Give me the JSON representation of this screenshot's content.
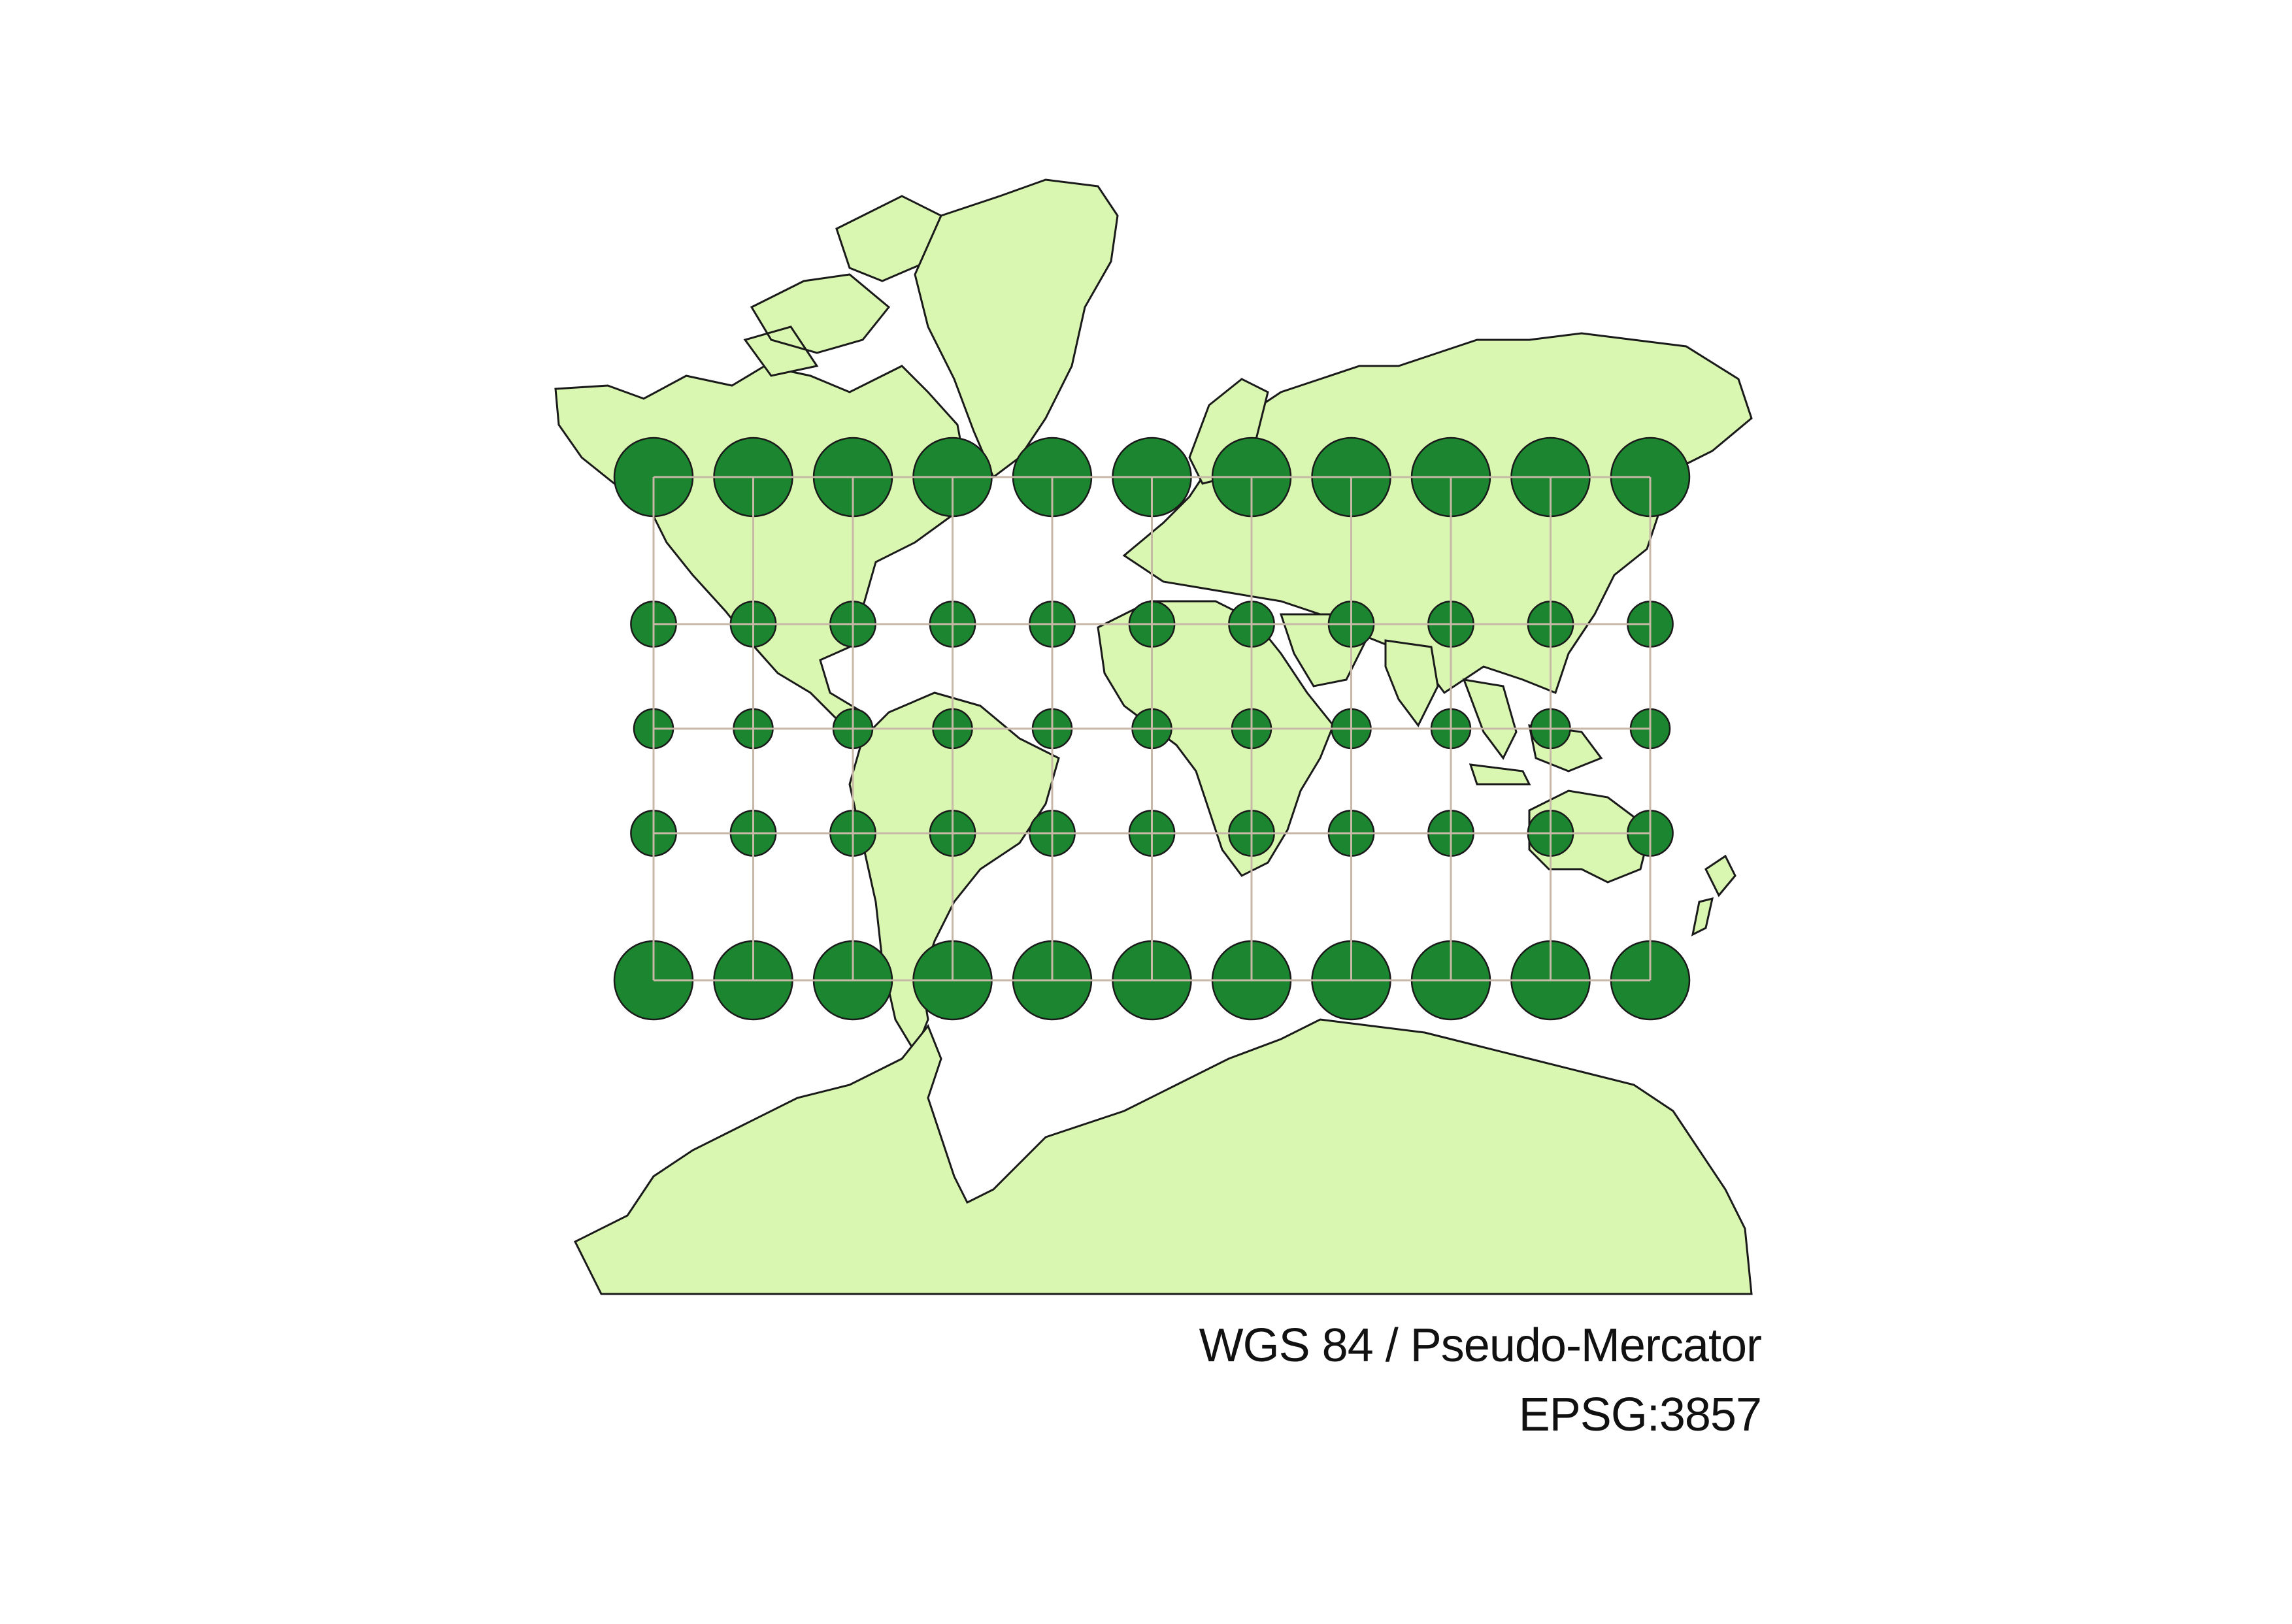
{
  "map": {
    "projection_name": "WGS 84 / Pseudo-Mercator",
    "projection_code": "EPSG:3857",
    "colors": {
      "land_fill": "#d9f7b0",
      "coastline": "#1a1a1a",
      "graticule": "#c8b8a8",
      "circle_fill": "#1b8530",
      "circle_stroke": "#1a1a1a",
      "background": "#ffffff"
    },
    "graticule": {
      "longitudes": [
        -150,
        -120,
        -90,
        -60,
        -30,
        0,
        30,
        60,
        90,
        120,
        150
      ],
      "latitudes": [
        60,
        30,
        0,
        -30,
        -60
      ]
    },
    "layers": [
      "countries",
      "graticule",
      "tissot-indicatrix-circles"
    ]
  }
}
